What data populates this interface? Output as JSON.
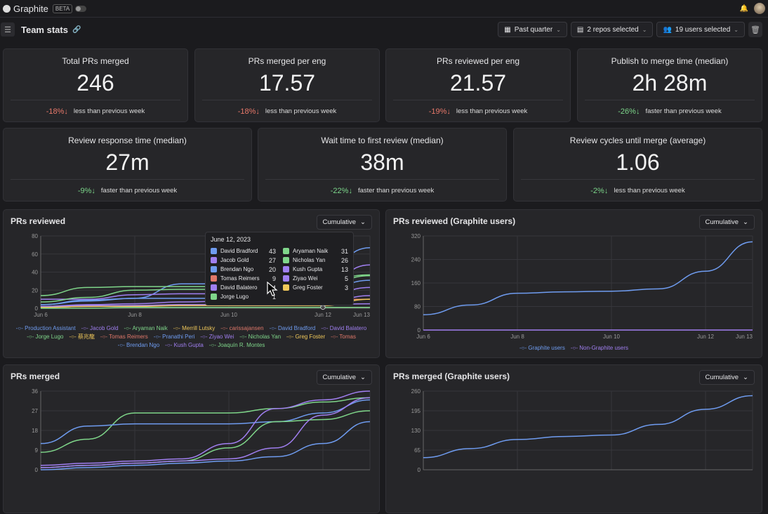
{
  "app": {
    "name": "Graphite",
    "badge": "BETA"
  },
  "header": {
    "title": "Team stats",
    "filters": [
      {
        "label": "Past quarter",
        "icon": "calendar-icon"
      },
      {
        "label": "2 repos selected",
        "icon": "repo-icon"
      },
      {
        "label": "19 users selected",
        "icon": "users-icon"
      }
    ]
  },
  "stats_row1": [
    {
      "label": "Total PRs merged",
      "value": "246",
      "delta": "-18%",
      "dir": "down",
      "tone": "neg",
      "note": "less than previous week"
    },
    {
      "label": "PRs merged per eng",
      "value": "17.57",
      "delta": "-18%",
      "dir": "down",
      "tone": "neg",
      "note": "less than previous week"
    },
    {
      "label": "PRs reviewed per eng",
      "value": "21.57",
      "delta": "-19%",
      "dir": "down",
      "tone": "neg",
      "note": "less than previous week"
    },
    {
      "label": "Publish to merge time (median)",
      "value": "2h 28m",
      "delta": "-26%",
      "dir": "down",
      "tone": "pos",
      "note": "faster than previous week"
    }
  ],
  "stats_row2": [
    {
      "label": "Review response time (median)",
      "value": "27m",
      "delta": "-9%",
      "dir": "down",
      "tone": "pos",
      "note": "faster than previous week"
    },
    {
      "label": "Wait time to first review (median)",
      "value": "38m",
      "delta": "-22%",
      "dir": "down",
      "tone": "pos",
      "note": "faster than previous week"
    },
    {
      "label": "Review cycles until merge (average)",
      "value": "1.06",
      "delta": "-2%",
      "dir": "down",
      "tone": "pos",
      "note": "less than previous week"
    }
  ],
  "dropdown_label": "Cumulative",
  "tooltip": {
    "date": "June 12, 2023",
    "rows": [
      {
        "name": "David Bradford",
        "value": "43",
        "color": "#6f9cf0"
      },
      {
        "name": "Aryaman Naik",
        "value": "31",
        "color": "#7fd68a"
      },
      {
        "name": "Jacob Gold",
        "value": "27",
        "color": "#a07ff0"
      },
      {
        "name": "Nicholas Yan",
        "value": "26",
        "color": "#7fd68a"
      },
      {
        "name": "Brendan Ngo",
        "value": "20",
        "color": "#6f9cf0"
      },
      {
        "name": "Kush Gupta",
        "value": "13",
        "color": "#a07ff0"
      },
      {
        "name": "Tomas Reimers",
        "value": "9",
        "color": "#e0786a"
      },
      {
        "name": "Ziyao Wei",
        "value": "5",
        "color": "#a07ff0"
      },
      {
        "name": "David Balatero",
        "value": "4",
        "color": "#a07ff0"
      },
      {
        "name": "Greg Foster",
        "value": "3",
        "color": "#f0c85a"
      },
      {
        "name": "Jorge Lugo",
        "value": "1",
        "color": "#7fd68a"
      }
    ]
  },
  "chart_data": [
    {
      "id": "reviewed",
      "title": "PRs reviewed",
      "type": "line",
      "x": [
        "Jun 6",
        "Jun 7",
        "Jun 8",
        "Jun 9",
        "Jun 10",
        "Jun 11",
        "Jun 12",
        "Jun 13"
      ],
      "xticks": [
        "Jun 6",
        "Jun 8",
        "Jun 10",
        "Jun 12",
        "Jun 13"
      ],
      "ylim": [
        0,
        80
      ],
      "yticks": [
        0,
        20,
        40,
        60,
        80
      ],
      "grid": true,
      "legend": "bottom",
      "legend_items": [
        {
          "name": "Production Assistant",
          "color": "#6f9cf0"
        },
        {
          "name": "Jacob Gold",
          "color": "#a07ff0"
        },
        {
          "name": "Aryaman Naik",
          "color": "#7fd68a"
        },
        {
          "name": "Merrill Lutsky",
          "color": "#f0c85a"
        },
        {
          "name": "carissajansen",
          "color": "#e0786a"
        },
        {
          "name": "David Bradford",
          "color": "#6f9cf0"
        },
        {
          "name": "David Balatero",
          "color": "#a07ff0"
        },
        {
          "name": "Jorge Lugo",
          "color": "#7fd68a"
        },
        {
          "name": "蔡兆龍",
          "color": "#f0c85a"
        },
        {
          "name": "Tomas Reimers",
          "color": "#e0786a"
        },
        {
          "name": "Pranathi Peri",
          "color": "#6f9cf0"
        },
        {
          "name": "Ziyao Wei",
          "color": "#a07ff0"
        },
        {
          "name": "Nicholas Yan",
          "color": "#7fd68a"
        },
        {
          "name": "Greg Foster",
          "color": "#f0c85a"
        },
        {
          "name": "Tomas",
          "color": "#e0786a"
        },
        {
          "name": "Brendan Ngo",
          "color": "#6f9cf0"
        },
        {
          "name": "Kush Gupta",
          "color": "#a07ff0"
        },
        {
          "name": "Joaquín R. Montes",
          "color": "#7fd68a"
        }
      ],
      "series": [
        {
          "name": "David Bradford",
          "color": "#6f9cf0",
          "values": [
            4,
            8,
            11,
            27,
            27,
            27,
            43,
            67
          ]
        },
        {
          "name": "Aryaman Naik",
          "color": "#7fd68a",
          "values": [
            14,
            23,
            24,
            24,
            24,
            25,
            31,
            37
          ]
        },
        {
          "name": "Jacob Gold",
          "color": "#a07ff0",
          "values": [
            10,
            10,
            15,
            16,
            16,
            16,
            27,
            48
          ]
        },
        {
          "name": "Nicholas Yan",
          "color": "#7fd68a",
          "values": [
            7,
            12,
            20,
            21,
            21,
            21,
            26,
            36
          ]
        },
        {
          "name": "Brendan Ngo",
          "color": "#6f9cf0",
          "values": [
            4,
            9,
            11,
            11,
            11,
            11,
            20,
            31
          ]
        },
        {
          "name": "Kush Gupta",
          "color": "#a07ff0",
          "values": [
            2,
            4,
            5,
            7,
            8,
            8,
            13,
            23
          ]
        },
        {
          "name": "Tomas Reimers",
          "color": "#e0786a",
          "values": [
            1,
            2,
            3,
            4,
            4,
            4,
            9,
            10
          ]
        },
        {
          "name": "Ziyao Wei",
          "color": "#a07ff0",
          "values": [
            1,
            2,
            3,
            4,
            4,
            4,
            5,
            14
          ]
        },
        {
          "name": "David Balatero",
          "color": "#a07ff0",
          "values": [
            2,
            3,
            3,
            3,
            3,
            3,
            4,
            5
          ]
        },
        {
          "name": "Greg Foster",
          "color": "#f0c85a",
          "values": [
            1,
            2,
            2,
            3,
            3,
            3,
            3,
            10
          ]
        },
        {
          "name": "Jorge Lugo",
          "color": "#7fd68a",
          "values": [
            0,
            0,
            1,
            1,
            1,
            1,
            1,
            1
          ]
        }
      ]
    },
    {
      "id": "reviewed_g",
      "title": "PRs reviewed (Graphite users)",
      "type": "line",
      "x": [
        "Jun 6",
        "Jun 7",
        "Jun 8",
        "Jun 9",
        "Jun 10",
        "Jun 11",
        "Jun 12",
        "Jun 13"
      ],
      "xticks": [
        "Jun 6",
        "Jun 8",
        "Jun 10",
        "Jun 12",
        "Jun 13"
      ],
      "ylim": [
        0,
        320
      ],
      "yticks": [
        0,
        80,
        160,
        240,
        320
      ],
      "grid": true,
      "legend": "bottom",
      "legend_items": [
        {
          "name": "Graphite users",
          "color": "#6f9cf0"
        },
        {
          "name": "Non-Graphite users",
          "color": "#a07ff0"
        }
      ],
      "series": [
        {
          "name": "Graphite users",
          "color": "#6f9cf0",
          "values": [
            52,
            85,
            125,
            130,
            132,
            140,
            200,
            300
          ]
        },
        {
          "name": "Non-Graphite users",
          "color": "#a07ff0",
          "values": [
            0,
            0,
            0,
            0,
            0,
            0,
            0,
            0
          ]
        }
      ]
    },
    {
      "id": "merged",
      "title": "PRs merged",
      "type": "line",
      "x": [
        "Jun 6",
        "Jun 7",
        "Jun 8",
        "Jun 9",
        "Jun 10",
        "Jun 11",
        "Jun 12",
        "Jun 13"
      ],
      "xticks": [],
      "ylim": [
        0,
        36
      ],
      "yticks": [
        0,
        9,
        18,
        27,
        36
      ],
      "grid": true,
      "series": [
        {
          "color": "#7fd68a",
          "values": [
            8,
            14,
            26,
            26,
            26,
            28,
            31,
            33
          ]
        },
        {
          "color": "#6f9cf0",
          "values": [
            12,
            20,
            21,
            21,
            21,
            22,
            26,
            32
          ]
        },
        {
          "color": "#a07ff0",
          "values": [
            2,
            3,
            4,
            5,
            12,
            28,
            32,
            36
          ]
        },
        {
          "color": "#7fd68a",
          "values": [
            1,
            2,
            3,
            4,
            10,
            22,
            23,
            27
          ]
        },
        {
          "color": "#a07ff0",
          "values": [
            1,
            2,
            3,
            4,
            5,
            10,
            25,
            33
          ]
        },
        {
          "color": "#6f9cf0",
          "values": [
            0,
            1,
            2,
            3,
            4,
            6,
            12,
            22
          ]
        }
      ]
    },
    {
      "id": "merged_g",
      "title": "PRs merged (Graphite users)",
      "type": "line",
      "x": [
        "Jun 6",
        "Jun 7",
        "Jun 8",
        "Jun 9",
        "Jun 10",
        "Jun 11",
        "Jun 12",
        "Jun 13"
      ],
      "xticks": [],
      "ylim": [
        0,
        260
      ],
      "yticks": [
        0,
        65,
        130,
        195,
        260
      ],
      "grid": true,
      "series": [
        {
          "color": "#6f9cf0",
          "values": [
            40,
            70,
            100,
            110,
            115,
            150,
            200,
            245
          ]
        }
      ]
    }
  ]
}
